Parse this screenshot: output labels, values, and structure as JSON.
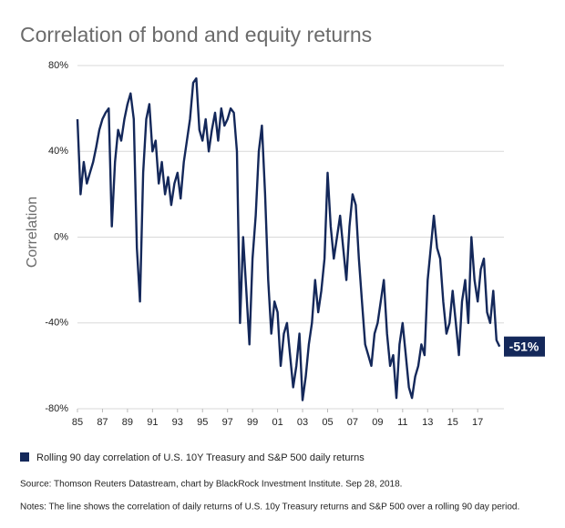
{
  "chart_data": {
    "type": "line",
    "title": "Correlation of bond and equity returns",
    "y_label": "Correlation",
    "x": [
      1985,
      1985.25,
      1985.5,
      1985.75,
      1986,
      1986.25,
      1986.5,
      1986.75,
      1987,
      1987.25,
      1987.5,
      1987.75,
      1988,
      1988.25,
      1988.5,
      1988.75,
      1989,
      1989.25,
      1989.5,
      1989.75,
      1990,
      1990.25,
      1990.5,
      1990.75,
      1991,
      1991.25,
      1991.5,
      1991.75,
      1992,
      1992.25,
      1992.5,
      1992.75,
      1993,
      1993.25,
      1993.5,
      1993.75,
      1994,
      1994.25,
      1994.5,
      1994.75,
      1995,
      1995.25,
      1995.5,
      1995.75,
      1996,
      1996.25,
      1996.5,
      1996.75,
      1997,
      1997.25,
      1997.5,
      1997.75,
      1998,
      1998.25,
      1998.5,
      1998.75,
      1999,
      1999.25,
      1999.5,
      1999.75,
      2000,
      2000.25,
      2000.5,
      2000.75,
      2001,
      2001.25,
      2001.5,
      2001.75,
      2002,
      2002.25,
      2002.5,
      2002.75,
      2003,
      2003.25,
      2003.5,
      2003.75,
      2004,
      2004.25,
      2004.5,
      2004.75,
      2005,
      2005.25,
      2005.5,
      2005.75,
      2006,
      2006.25,
      2006.5,
      2006.75,
      2007,
      2007.25,
      2007.5,
      2007.75,
      2008,
      2008.25,
      2008.5,
      2008.75,
      2009,
      2009.25,
      2009.5,
      2009.75,
      2010,
      2010.25,
      2010.5,
      2010.75,
      2011,
      2011.25,
      2011.5,
      2011.75,
      2012,
      2012.25,
      2012.5,
      2012.75,
      2013,
      2013.25,
      2013.5,
      2013.75,
      2014,
      2014.25,
      2014.5,
      2014.75,
      2015,
      2015.25,
      2015.5,
      2015.75,
      2016,
      2016.25,
      2016.5,
      2016.75,
      2017,
      2017.25,
      2017.5,
      2017.75,
      2018,
      2018.25,
      2018.5,
      2018.75
    ],
    "series": [
      {
        "name": "Rolling 90 day correlation of U.S. 10Y Treasury and S&P 500 daily returns",
        "color": "#14285a",
        "values": [
          55,
          20,
          35,
          25,
          30,
          35,
          42,
          50,
          55,
          58,
          60,
          5,
          35,
          50,
          45,
          55,
          62,
          67,
          55,
          -5,
          -30,
          30,
          55,
          62,
          40,
          45,
          25,
          35,
          20,
          28,
          15,
          25,
          30,
          18,
          35,
          45,
          55,
          72,
          74,
          50,
          45,
          55,
          40,
          50,
          58,
          45,
          60,
          52,
          55,
          60,
          58,
          40,
          -40,
          0,
          -25,
          -50,
          -10,
          10,
          40,
          52,
          20,
          -20,
          -45,
          -30,
          -35,
          -60,
          -45,
          -40,
          -55,
          -70,
          -60,
          -45,
          -76,
          -65,
          -50,
          -40,
          -20,
          -35,
          -25,
          -10,
          30,
          5,
          -10,
          0,
          10,
          -5,
          -20,
          5,
          20,
          15,
          -10,
          -30,
          -50,
          -55,
          -60,
          -45,
          -40,
          -30,
          -20,
          -45,
          -60,
          -55,
          -75,
          -50,
          -40,
          -55,
          -70,
          -75,
          -65,
          -60,
          -50,
          -55,
          -20,
          -5,
          10,
          -5,
          -10,
          -30,
          -45,
          -40,
          -25,
          -40,
          -55,
          -30,
          -20,
          -40,
          0,
          -20,
          -30,
          -15,
          -10,
          -35,
          -40,
          -25,
          -48,
          -51
        ]
      }
    ],
    "end_label": {
      "value": -51,
      "label": "-51%"
    },
    "xlim": [
      1985,
      2019.1
    ],
    "xticks": [
      {
        "value": 1985,
        "label": "85"
      },
      {
        "value": 1987,
        "label": "87"
      },
      {
        "value": 1989,
        "label": "89"
      },
      {
        "value": 1991,
        "label": "91"
      },
      {
        "value": 1993,
        "label": "93"
      },
      {
        "value": 1995,
        "label": "95"
      },
      {
        "value": 1997,
        "label": "97"
      },
      {
        "value": 1999,
        "label": "99"
      },
      {
        "value": 2001,
        "label": "01"
      },
      {
        "value": 2003,
        "label": "03"
      },
      {
        "value": 2005,
        "label": "05"
      },
      {
        "value": 2007,
        "label": "07"
      },
      {
        "value": 2009,
        "label": "09"
      },
      {
        "value": 2011,
        "label": "11"
      },
      {
        "value": 2013,
        "label": "13"
      },
      {
        "value": 2015,
        "label": "15"
      },
      {
        "value": 2017,
        "label": "17"
      }
    ],
    "ylim": [
      -80,
      80
    ],
    "yticks": [
      {
        "value": -80,
        "label": "-80%"
      },
      {
        "value": -40,
        "label": "-40%"
      },
      {
        "value": 0,
        "label": "0%"
      },
      {
        "value": 40,
        "label": "40%"
      },
      {
        "value": 80,
        "label": "80%"
      }
    ],
    "grid": true,
    "source": "Source: Thomson Reuters Datastream, chart by BlackRock Investment Institute. Sep 28, 2018.",
    "notes": "Notes: The line shows the correlation of daily returns of U.S. 10y Treasury returns and S&P 500 over a rolling 90 day period."
  }
}
